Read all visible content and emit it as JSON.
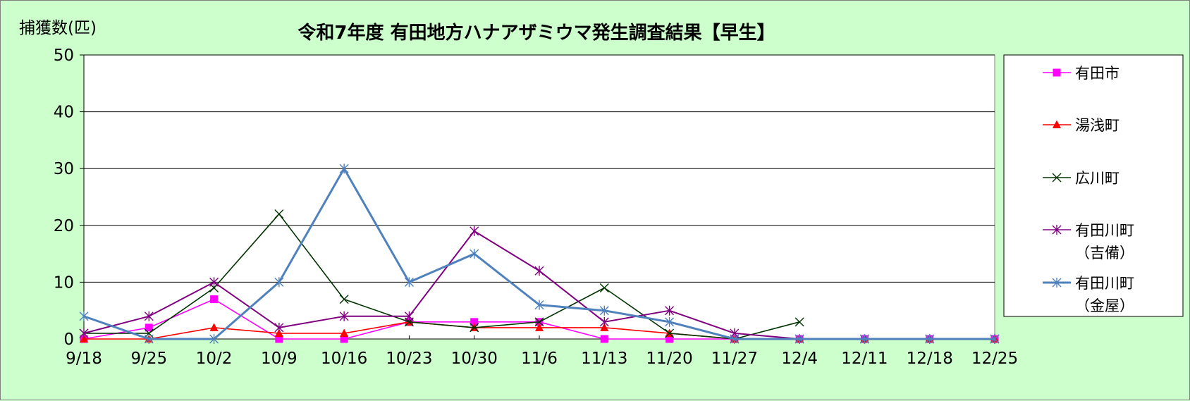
{
  "chart_data": {
    "type": "line",
    "title": "令和7年度 有田地方ハナアザミウマ発生調査結果【早生】",
    "ylabel": "捕獲数(匹)",
    "xlabel": "",
    "categories": [
      "9/18",
      "9/25",
      "10/2",
      "10/9",
      "10/16",
      "10/23",
      "10/30",
      "11/6",
      "11/13",
      "11/20",
      "11/27",
      "12/4",
      "12/11",
      "12/18",
      "12/25"
    ],
    "ylim": [
      0,
      50
    ],
    "yticks": [
      0,
      10,
      20,
      30,
      40,
      50
    ],
    "grid": "horizontal",
    "legend_position": "right",
    "series": [
      {
        "name": "有田市",
        "name_lines": [
          "有田市"
        ],
        "color": "#ff00ff",
        "marker": "square",
        "values": [
          0,
          2,
          7,
          0,
          0,
          3,
          3,
          3,
          0,
          0,
          0,
          0,
          0,
          0,
          0
        ]
      },
      {
        "name": "湯浅町",
        "name_lines": [
          "湯浅町"
        ],
        "color": "#ff0000",
        "marker": "triangle",
        "values": [
          0,
          0,
          2,
          1,
          1,
          3,
          2,
          2,
          2,
          1,
          0,
          0,
          0,
          0,
          0
        ]
      },
      {
        "name": "広川町",
        "name_lines": [
          "広川町"
        ],
        "color": "#003300",
        "marker": "x",
        "values": [
          1,
          1,
          9,
          22,
          7,
          3,
          2,
          3,
          9,
          1,
          0,
          3,
          null,
          null,
          null
        ]
      },
      {
        "name": "有田川町（吉備）",
        "name_lines": [
          "有田川町",
          "（吉備）"
        ],
        "color": "#800080",
        "marker": "star",
        "values": [
          1,
          4,
          10,
          2,
          4,
          4,
          19,
          12,
          3,
          5,
          1,
          0,
          0,
          0,
          0
        ]
      },
      {
        "name": "有田川町（金屋）",
        "name_lines": [
          "有田川町",
          "（金屋）"
        ],
        "color": "#4f81bd",
        "marker": "star",
        "values": [
          4,
          0,
          0,
          10,
          30,
          10,
          15,
          6,
          5,
          3,
          0,
          0,
          0,
          0,
          0
        ]
      }
    ]
  }
}
